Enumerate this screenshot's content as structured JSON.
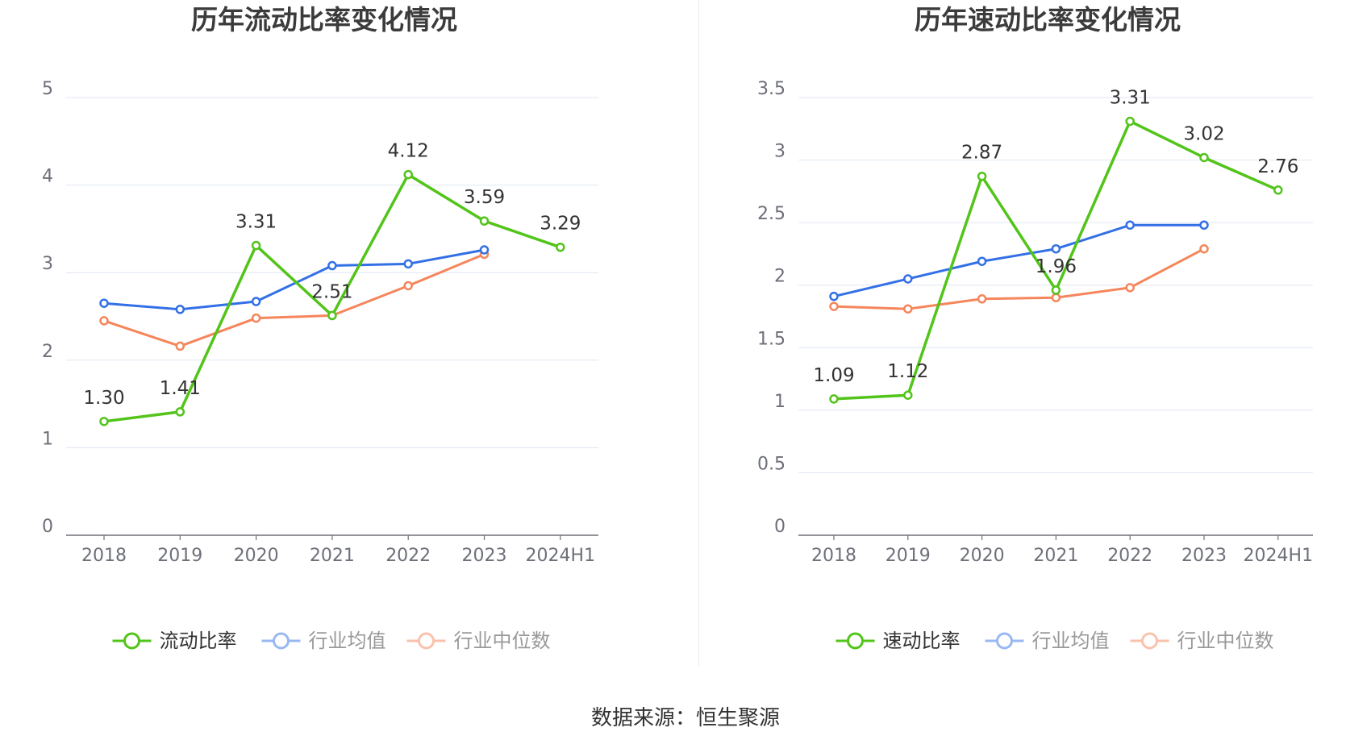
{
  "colors": {
    "main": "#52c41a",
    "avg": "#3370e6",
    "median": "#f5855b"
  },
  "source": "数据来源：恒生聚源",
  "chart_data": [
    {
      "type": "line",
      "title": "历年流动比率变化情况",
      "categories": [
        "2018",
        "2019",
        "2020",
        "2021",
        "2022",
        "2023",
        "2024H1"
      ],
      "ylim": [
        0,
        5
      ],
      "yticks": [
        "0",
        "1",
        "2",
        "3",
        "4",
        "5"
      ],
      "grid": true,
      "legend_position": "bottom",
      "series": [
        {
          "name": "流动比率",
          "color": "#52c41a",
          "values": [
            1.3,
            1.41,
            3.31,
            2.51,
            4.12,
            3.59,
            3.29
          ],
          "labels": [
            "1.30",
            "1.41",
            "3.31",
            "2.51",
            "4.12",
            "3.59",
            "3.29"
          ]
        },
        {
          "name": "行业均值",
          "color": "#3370e6",
          "values": [
            2.65,
            2.58,
            2.67,
            3.08,
            3.1,
            3.26,
            null
          ]
        },
        {
          "name": "行业中位数",
          "color": "#f5855b",
          "values": [
            2.45,
            2.16,
            2.48,
            2.51,
            2.85,
            3.21,
            null
          ]
        }
      ]
    },
    {
      "type": "line",
      "title": "历年速动比率变化情况",
      "categories": [
        "2018",
        "2019",
        "2020",
        "2021",
        "2022",
        "2023",
        "2024H1"
      ],
      "ylim": [
        0,
        3.5
      ],
      "yticks": [
        "0",
        "0.5",
        "1",
        "1.5",
        "2",
        "2.5",
        "3",
        "3.5"
      ],
      "grid": true,
      "legend_position": "bottom",
      "series": [
        {
          "name": "速动比率",
          "color": "#52c41a",
          "values": [
            1.09,
            1.12,
            2.87,
            1.96,
            3.31,
            3.02,
            2.76
          ],
          "labels": [
            "1.09",
            "1.12",
            "2.87",
            "1.96",
            "3.31",
            "3.02",
            "2.76"
          ]
        },
        {
          "name": "行业均值",
          "color": "#3370e6",
          "values": [
            1.91,
            2.05,
            2.19,
            2.29,
            2.48,
            2.48,
            null
          ]
        },
        {
          "name": "行业中位数",
          "color": "#f5855b",
          "values": [
            1.83,
            1.81,
            1.89,
            1.9,
            1.98,
            2.29,
            null
          ]
        }
      ]
    }
  ]
}
